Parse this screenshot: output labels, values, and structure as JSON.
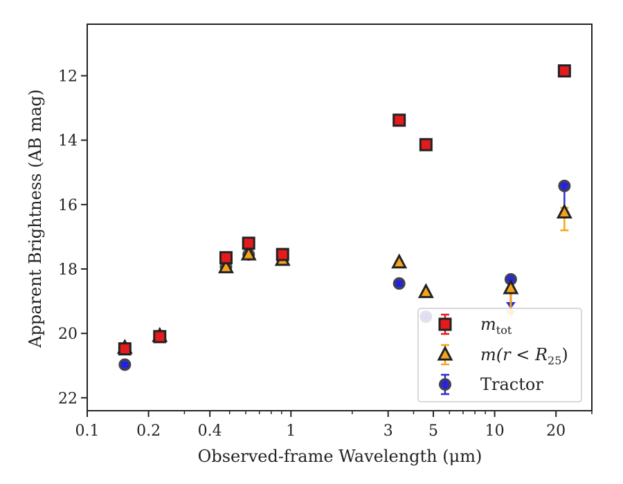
{
  "chart_data": {
    "type": "scatter",
    "xlabel": "Observed-frame Wavelength (μm)",
    "ylabel": "Apparent Brightness (AB mag)",
    "xscale": "log",
    "xlim": [
      0.1,
      30
    ],
    "ylim": [
      22.4,
      10.4
    ],
    "y_inverted": true,
    "x_ticks": [
      {
        "v": 0.1,
        "label": "0.1"
      },
      {
        "v": 0.2,
        "label": "0.2"
      },
      {
        "v": 0.4,
        "label": "0.4"
      },
      {
        "v": 1,
        "label": "1"
      },
      {
        "v": 3,
        "label": "3"
      },
      {
        "v": 5,
        "label": "5"
      },
      {
        "v": 10,
        "label": "10"
      },
      {
        "v": 20,
        "label": "20"
      }
    ],
    "y_ticks": [
      {
        "v": 12,
        "label": "12"
      },
      {
        "v": 14,
        "label": "14"
      },
      {
        "v": 16,
        "label": "16"
      },
      {
        "v": 18,
        "label": "18"
      },
      {
        "v": 20,
        "label": "20"
      },
      {
        "v": 22,
        "label": "22"
      }
    ],
    "legend_position": "lower-right",
    "series": [
      {
        "name": "m_tot",
        "marker": "square",
        "color": "#e41a1c",
        "errcolor": "#e41a1c",
        "points": [
          {
            "x": 0.153,
            "y": 20.48,
            "err": 0.05
          },
          {
            "x": 0.227,
            "y": 20.1,
            "err": 0.05
          },
          {
            "x": 0.48,
            "y": 17.65,
            "err": 0.08
          },
          {
            "x": 0.62,
            "y": 17.2,
            "err": 0.08
          },
          {
            "x": 0.91,
            "y": 17.55,
            "err": 0.05
          },
          {
            "x": 3.4,
            "y": 13.38,
            "err": 0.03
          },
          {
            "x": 4.6,
            "y": 14.14,
            "err": 0.03
          },
          {
            "x": 22,
            "y": 11.85,
            "err": 0.05
          }
        ]
      },
      {
        "name": "m(r < R25)",
        "marker": "triangle",
        "color": "#f5a31a",
        "errcolor": "#f5a31a",
        "points": [
          {
            "x": 0.153,
            "y": 20.45,
            "err": 0.05
          },
          {
            "x": 0.227,
            "y": 20.08,
            "err": 0.05
          },
          {
            "x": 0.48,
            "y": 17.95,
            "err": 0.05
          },
          {
            "x": 0.62,
            "y": 17.55,
            "err": 0.05
          },
          {
            "x": 0.91,
            "y": 17.72,
            "err": 0.05
          },
          {
            "x": 3.4,
            "y": 17.8,
            "err": 0.05
          },
          {
            "x": 4.6,
            "y": 18.72,
            "err": 0.05
          },
          {
            "x": 12,
            "y": 18.6,
            "err": 0.05,
            "upper_limit_to": 19.45
          },
          {
            "x": 22,
            "y": 16.25,
            "err_lo": 0.15,
            "err_hi": 0.55
          }
        ]
      },
      {
        "name": "Tractor",
        "marker": "circle",
        "color": "#1f1fd6",
        "errcolor": "#2b2bd6",
        "points": [
          {
            "x": 0.153,
            "y": 20.97,
            "err": 0.05
          },
          {
            "x": 0.227,
            "y": 20.1,
            "err": 0.05
          },
          {
            "x": 0.48,
            "y": 17.93,
            "err": 0.05
          },
          {
            "x": 0.62,
            "y": 17.55,
            "err": 0.05
          },
          {
            "x": 0.91,
            "y": 17.55,
            "err": 0.05
          },
          {
            "x": 3.4,
            "y": 18.45,
            "err": 0.05
          },
          {
            "x": 4.6,
            "y": 19.48,
            "err": 0.05
          },
          {
            "x": 12,
            "y": 18.32,
            "err": 0.05,
            "upper_limit_to": 19.2
          },
          {
            "x": 22,
            "y": 15.42,
            "err_lo": 0.05,
            "err_hi": 0.8
          }
        ]
      }
    ]
  },
  "legend": {
    "items": [
      {
        "name": "m_tot",
        "base": "m",
        "sub": "tot",
        "marker": "square"
      },
      {
        "name": "m(r < R25)",
        "text": "m(r < R",
        "sub": "25",
        "suffix": ")",
        "marker": "triangle"
      },
      {
        "name": "Tractor",
        "text": "Tractor",
        "marker": "circle"
      }
    ]
  }
}
